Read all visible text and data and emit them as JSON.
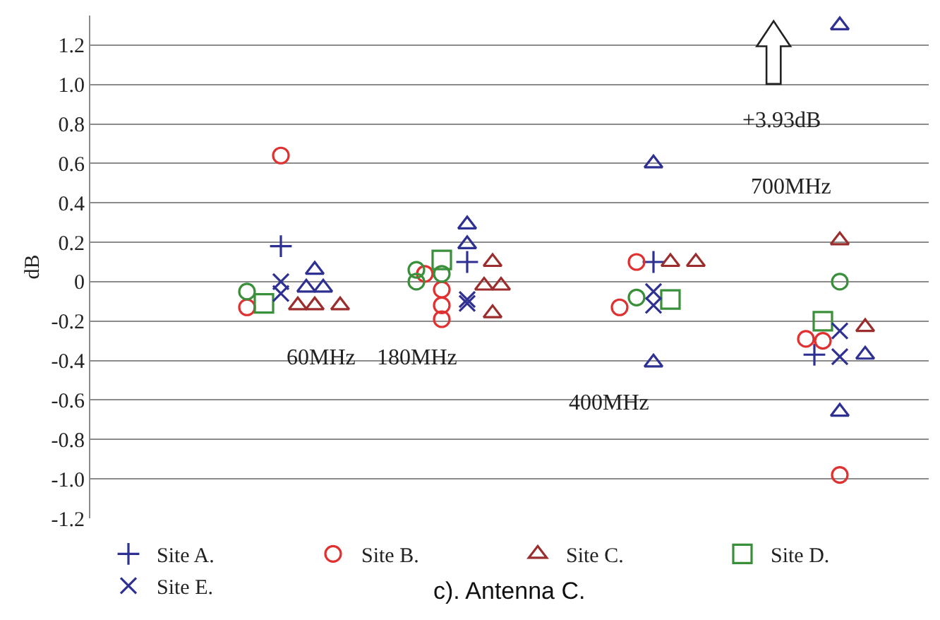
{
  "chart_data": {
    "type": "scatter",
    "ylabel": "dB",
    "categories": [
      null,
      null,
      null,
      null,
      null,
      null,
      null,
      null,
      null,
      null,
      null,
      null,
      null,
      null,
      null,
      null,
      null,
      null,
      null,
      null,
      null,
      null,
      null,
      null,
      null,
      null,
      null,
      null,
      null,
      null,
      null,
      null,
      null,
      null,
      null,
      null,
      null,
      null,
      null,
      null,
      null,
      null,
      null,
      null,
      null,
      null,
      null,
      null,
      null,
      null,
      null,
      null,
      null,
      null,
      null,
      null,
      null,
      null,
      null,
      null,
      null,
      null,
      null,
      null,
      null,
      null,
      null,
      null,
      null,
      null,
      null,
      null,
      null,
      null,
      null,
      null,
      null,
      null,
      null,
      null,
      null,
      null,
      null,
      null,
      null,
      null,
      null,
      null,
      null,
      null,
      null,
      null,
      null,
      null,
      null,
      null,
      null,
      null,
      null
    ],
    "ylim": [
      -1.2,
      1.35
    ],
    "yticks": [
      {
        "value": -1.2,
        "label": "-1.2"
      },
      {
        "value": -1.0,
        "label": "-1.0"
      },
      {
        "value": -0.8,
        "label": "-0.8"
      },
      {
        "value": -0.6,
        "label": "-0.6"
      },
      {
        "value": -0.4,
        "label": "-0.4"
      },
      {
        "value": -0.2,
        "label": "-0.2"
      },
      {
        "value": 0,
        "label": "0"
      },
      {
        "value": 0.2,
        "label": "0.2"
      },
      {
        "value": 0.4,
        "label": "0.4"
      },
      {
        "value": 0.6,
        "label": "0.6"
      },
      {
        "value": 0.8,
        "label": "0.8"
      },
      {
        "value": 1.0,
        "label": "1.0"
      },
      {
        "value": 1.2,
        "label": "1.2"
      }
    ],
    "tick_labels": "y",
    "grid": "y",
    "legend": "bottom",
    "series": [
      {
        "name": "Site A.",
        "color": "#2e3192",
        "marker": "cross",
        "values": [
          null,
          null,
          null,
          null,
          null,
          null,
          null,
          null,
          null,
          null,
          null,
          null,
          null,
          null,
          null,
          null,
          null,
          null,
          null,
          null,
          null,
          null,
          0.18,
          null,
          null,
          null,
          null,
          null,
          null,
          null,
          null,
          null,
          null,
          null,
          null,
          null,
          null,
          null,
          null,
          null,
          null,
          null,
          null,
          null,
          0.1,
          null,
          null,
          null,
          null,
          null,
          null,
          null,
          null,
          null,
          null,
          null,
          null,
          null,
          null,
          null,
          null,
          null,
          null,
          null,
          null,
          null,
          0.1,
          null,
          null,
          null,
          null,
          null,
          null,
          null,
          null,
          null,
          null,
          null,
          null,
          null,
          null,
          null,
          null,
          null,
          null,
          -0.37,
          null,
          null,
          null,
          null,
          null,
          null,
          null,
          null,
          null,
          null,
          null,
          null,
          null
        ]
      },
      {
        "name": "Site B.",
        "color": "#e03030",
        "marker": "circle",
        "values": [
          null,
          null,
          null,
          null,
          null,
          null,
          null,
          null,
          null,
          null,
          null,
          null,
          null,
          null,
          null,
          null,
          null,
          null,
          -0.13,
          null,
          null,
          null,
          0.64,
          null,
          null,
          null,
          null,
          null,
          null,
          null,
          null,
          null,
          null,
          null,
          null,
          null,
          null,
          null,
          null,
          0.04,
          null,
          -0.04,
          null,
          null,
          null,
          null,
          null,
          null,
          null,
          null,
          null,
          null,
          null,
          null,
          null,
          null,
          null,
          null,
          null,
          null,
          null,
          null,
          -0.13,
          null,
          0.1,
          null,
          null,
          null,
          null,
          null,
          null,
          null,
          null,
          null,
          null,
          null,
          null,
          null,
          null,
          null,
          null,
          null,
          null,
          null,
          -0.29,
          null,
          -0.3,
          null,
          -0.98,
          null,
          null,
          null,
          null,
          null,
          null,
          null,
          null,
          null,
          null
        ]
      },
      {
        "color": "#e03030",
        "marker": "circle",
        "values": [
          null,
          null,
          null,
          null,
          null,
          null,
          null,
          null,
          null,
          null,
          null,
          null,
          null,
          null,
          null,
          null,
          null,
          null,
          null,
          null,
          null,
          null,
          null,
          null,
          null,
          null,
          null,
          null,
          null,
          null,
          null,
          null,
          null,
          null,
          null,
          null,
          null,
          null,
          null,
          null,
          null,
          -0.12,
          null,
          null,
          null,
          null,
          null,
          null,
          null,
          null,
          null,
          null,
          null,
          null,
          null,
          null,
          null,
          null,
          null,
          null,
          null,
          null,
          null,
          null,
          null,
          null,
          null,
          null,
          null,
          null,
          null,
          null,
          null,
          null,
          null,
          null,
          null,
          null,
          null,
          null,
          null,
          null,
          null,
          null,
          null,
          null,
          null,
          null,
          null,
          null,
          null,
          null,
          null,
          null,
          null,
          null,
          null,
          null,
          null
        ]
      },
      {
        "color": "#e03030",
        "marker": "circle",
        "values": [
          null,
          null,
          null,
          null,
          null,
          null,
          null,
          null,
          null,
          null,
          null,
          null,
          null,
          null,
          null,
          null,
          null,
          null,
          null,
          null,
          null,
          null,
          null,
          null,
          null,
          null,
          null,
          null,
          null,
          null,
          null,
          null,
          null,
          null,
          null,
          null,
          null,
          null,
          null,
          null,
          null,
          -0.19,
          null,
          null,
          null,
          null,
          null,
          null,
          null,
          null,
          null,
          null,
          null,
          null,
          null,
          null,
          null,
          null,
          null,
          null,
          null,
          null,
          null,
          null,
          null,
          null,
          null,
          null,
          null,
          null,
          null,
          null,
          null,
          null,
          null,
          null,
          null,
          null,
          null,
          null,
          null,
          null,
          null,
          null,
          null,
          null,
          null,
          null,
          null,
          null,
          null,
          null,
          null,
          null,
          null,
          null,
          null,
          null,
          null
        ]
      },
      {
        "name": "Site C.",
        "color": "#9b2d2d",
        "marker": "triangle",
        "values": [
          null,
          null,
          null,
          null,
          null,
          null,
          null,
          null,
          null,
          null,
          null,
          null,
          null,
          null,
          null,
          null,
          null,
          null,
          null,
          null,
          null,
          null,
          null,
          null,
          -0.12,
          null,
          -0.12,
          null,
          null,
          -0.12,
          null,
          null,
          null,
          null,
          null,
          null,
          null,
          null,
          null,
          null,
          null,
          null,
          null,
          null,
          null,
          null,
          -0.02,
          0.1,
          -0.02,
          null,
          null,
          null,
          null,
          null,
          null,
          null,
          null,
          null,
          null,
          null,
          null,
          null,
          null,
          null,
          null,
          null,
          null,
          null,
          0.1,
          null,
          null,
          0.1,
          null,
          null,
          null,
          null,
          null,
          null,
          null,
          null,
          null,
          null,
          null,
          null,
          null,
          null,
          null,
          null,
          0.21,
          null,
          null,
          -0.23,
          null,
          null,
          null,
          null,
          null,
          null,
          null
        ]
      },
      {
        "color": "#9b2d2d",
        "marker": "triangle",
        "values": [
          null,
          null,
          null,
          null,
          null,
          null,
          null,
          null,
          null,
          null,
          null,
          null,
          null,
          null,
          null,
          null,
          null,
          null,
          null,
          null,
          null,
          null,
          null,
          null,
          null,
          null,
          null,
          null,
          null,
          null,
          null,
          null,
          null,
          null,
          null,
          null,
          null,
          null,
          null,
          null,
          null,
          null,
          null,
          null,
          null,
          null,
          null,
          -0.16,
          null,
          null,
          null,
          null,
          null,
          null,
          null,
          null,
          null,
          null,
          null,
          null,
          null,
          null,
          null,
          null,
          null,
          null,
          null,
          null,
          null,
          null,
          null,
          null,
          null,
          null,
          null,
          null,
          null,
          null,
          null,
          null,
          null,
          null,
          null,
          null,
          null,
          null,
          null,
          null,
          null,
          null,
          null,
          null,
          null,
          null,
          null,
          null,
          null,
          null,
          null
        ]
      },
      {
        "name": "Site D.",
        "color": "#3a8f3a",
        "marker": "square",
        "values": [
          null,
          null,
          null,
          null,
          null,
          null,
          null,
          null,
          null,
          null,
          null,
          null,
          null,
          null,
          null,
          null,
          null,
          null,
          null,
          null,
          -0.11,
          null,
          null,
          null,
          null,
          null,
          null,
          null,
          null,
          null,
          null,
          null,
          null,
          null,
          null,
          null,
          null,
          null,
          null,
          null,
          null,
          0.11,
          null,
          null,
          null,
          null,
          null,
          null,
          null,
          null,
          null,
          null,
          null,
          null,
          null,
          null,
          null,
          null,
          null,
          null,
          null,
          null,
          null,
          null,
          null,
          null,
          null,
          null,
          -0.09,
          null,
          null,
          null,
          null,
          null,
          null,
          null,
          null,
          null,
          null,
          null,
          null,
          null,
          null,
          null,
          null,
          null,
          -0.2,
          null,
          null,
          null,
          null,
          null,
          null,
          null,
          null,
          null,
          null,
          null,
          null
        ]
      },
      {
        "name": "Site E.",
        "color": "#2e3192",
        "marker": "x",
        "values": [
          null,
          null,
          null,
          null,
          null,
          null,
          null,
          null,
          null,
          null,
          null,
          null,
          null,
          null,
          null,
          null,
          null,
          null,
          null,
          null,
          null,
          null,
          0.0,
          null,
          null,
          null,
          null,
          null,
          null,
          null,
          null,
          null,
          null,
          null,
          null,
          null,
          null,
          null,
          null,
          null,
          null,
          null,
          null,
          null,
          -0.09,
          null,
          null,
          null,
          null,
          null,
          null,
          null,
          null,
          null,
          null,
          null,
          null,
          null,
          null,
          null,
          null,
          null,
          null,
          null,
          null,
          null,
          -0.05,
          null,
          null,
          null,
          null,
          null,
          null,
          null,
          null,
          null,
          null,
          null,
          null,
          null,
          null,
          null,
          null,
          null,
          null,
          null,
          null,
          null,
          -0.25,
          null,
          null,
          null,
          null,
          null,
          null,
          null,
          null,
          null,
          null
        ]
      },
      {
        "color": "#2e3192",
        "marker": "x",
        "values": [
          null,
          null,
          null,
          null,
          null,
          null,
          null,
          null,
          null,
          null,
          null,
          null,
          null,
          null,
          null,
          null,
          null,
          null,
          null,
          null,
          null,
          null,
          -0.06,
          null,
          null,
          null,
          null,
          null,
          null,
          null,
          null,
          null,
          null,
          null,
          null,
          null,
          null,
          null,
          null,
          null,
          null,
          null,
          null,
          null,
          -0.11,
          null,
          null,
          null,
          null,
          null,
          null,
          null,
          null,
          null,
          null,
          null,
          null,
          null,
          null,
          null,
          null,
          null,
          null,
          null,
          null,
          null,
          -0.12,
          null,
          null,
          null,
          null,
          null,
          null,
          null,
          null,
          null,
          null,
          null,
          null,
          null,
          null,
          null,
          null,
          null,
          null,
          null,
          null,
          null,
          -0.38,
          null,
          null,
          null,
          null,
          null,
          null,
          null,
          null,
          null,
          null
        ]
      },
      {
        "color": "#2e3192",
        "marker": "triangle",
        "values": [
          null,
          null,
          null,
          null,
          null,
          null,
          null,
          null,
          null,
          null,
          null,
          null,
          null,
          null,
          null,
          null,
          null,
          null,
          null,
          null,
          null,
          null,
          null,
          null,
          null,
          -0.03,
          0.06,
          -0.03,
          null,
          null,
          null,
          null,
          null,
          null,
          null,
          null,
          null,
          null,
          null,
          null,
          null,
          null,
          null,
          null,
          0.29,
          null,
          null,
          null,
          null,
          null,
          null,
          null,
          null,
          null,
          null,
          null,
          null,
          null,
          null,
          null,
          null,
          null,
          null,
          null,
          null,
          null,
          0.6,
          null,
          null,
          null,
          null,
          null,
          null,
          null,
          null,
          null,
          null,
          null,
          null,
          null,
          null,
          null,
          null,
          null,
          null,
          null,
          null,
          null,
          1.3,
          null,
          null,
          -0.37,
          null,
          null,
          null,
          null,
          null,
          null,
          null
        ]
      },
      {
        "color": "#2e3192",
        "marker": "triangle",
        "values": [
          null,
          null,
          null,
          null,
          null,
          null,
          null,
          null,
          null,
          null,
          null,
          null,
          null,
          null,
          null,
          null,
          null,
          null,
          null,
          null,
          null,
          null,
          null,
          null,
          null,
          null,
          null,
          null,
          null,
          null,
          null,
          null,
          null,
          null,
          null,
          null,
          null,
          null,
          null,
          null,
          null,
          null,
          null,
          null,
          0.19,
          null,
          null,
          null,
          null,
          null,
          null,
          null,
          null,
          null,
          null,
          null,
          null,
          null,
          null,
          null,
          null,
          null,
          null,
          null,
          null,
          null,
          -0.41,
          null,
          null,
          null,
          null,
          null,
          null,
          null,
          null,
          null,
          null,
          null,
          null,
          null,
          null,
          null,
          null,
          null,
          null,
          null,
          null,
          null,
          -0.66,
          null,
          null,
          null,
          null,
          null,
          null,
          null,
          null,
          null,
          null
        ]
      },
      {
        "color": "#3a8f3a",
        "marker": "circle",
        "values": [
          null,
          null,
          null,
          null,
          null,
          null,
          null,
          null,
          null,
          null,
          null,
          null,
          null,
          null,
          null,
          null,
          null,
          null,
          -0.05,
          null,
          null,
          null,
          null,
          null,
          null,
          null,
          null,
          null,
          null,
          null,
          null,
          null,
          null,
          null,
          null,
          null,
          null,
          null,
          0.06,
          null,
          null,
          0.04,
          null,
          null,
          null,
          null,
          null,
          null,
          null,
          null,
          null,
          null,
          null,
          null,
          null,
          null,
          null,
          null,
          null,
          null,
          null,
          null,
          null,
          null,
          -0.08,
          null,
          null,
          null,
          null,
          null,
          null,
          null,
          null,
          null,
          null,
          null,
          null,
          null,
          null,
          null,
          null,
          null,
          null,
          null,
          null,
          null,
          null,
          null,
          0.0,
          null,
          null,
          null,
          null,
          null,
          null,
          null,
          null,
          null,
          null
        ]
      },
      {
        "color": "#3a8f3a",
        "marker": "circle",
        "values": [
          null,
          null,
          null,
          null,
          null,
          null,
          null,
          null,
          null,
          null,
          null,
          null,
          null,
          null,
          null,
          null,
          null,
          null,
          null,
          null,
          null,
          null,
          null,
          null,
          null,
          null,
          null,
          null,
          null,
          null,
          null,
          null,
          null,
          null,
          null,
          null,
          null,
          null,
          0.0,
          null,
          null,
          null,
          null,
          null,
          null,
          null,
          null,
          null,
          null,
          null,
          null,
          null,
          null,
          null,
          null,
          null,
          null,
          null,
          null,
          null,
          null,
          null,
          null,
          null,
          null,
          null,
          null,
          null,
          null,
          null,
          null,
          null,
          null,
          null,
          null,
          null,
          null,
          null,
          null,
          null,
          null,
          null,
          null,
          null,
          null,
          null,
          null,
          null,
          null,
          null,
          null,
          null,
          null,
          null,
          null,
          null,
          null,
          null,
          null
        ]
      }
    ],
    "annotations": [
      "60MHz",
      "180MHz",
      "400MHz",
      "700MHz",
      "+3.93dB",
      "c). Antenna C."
    ]
  }
}
